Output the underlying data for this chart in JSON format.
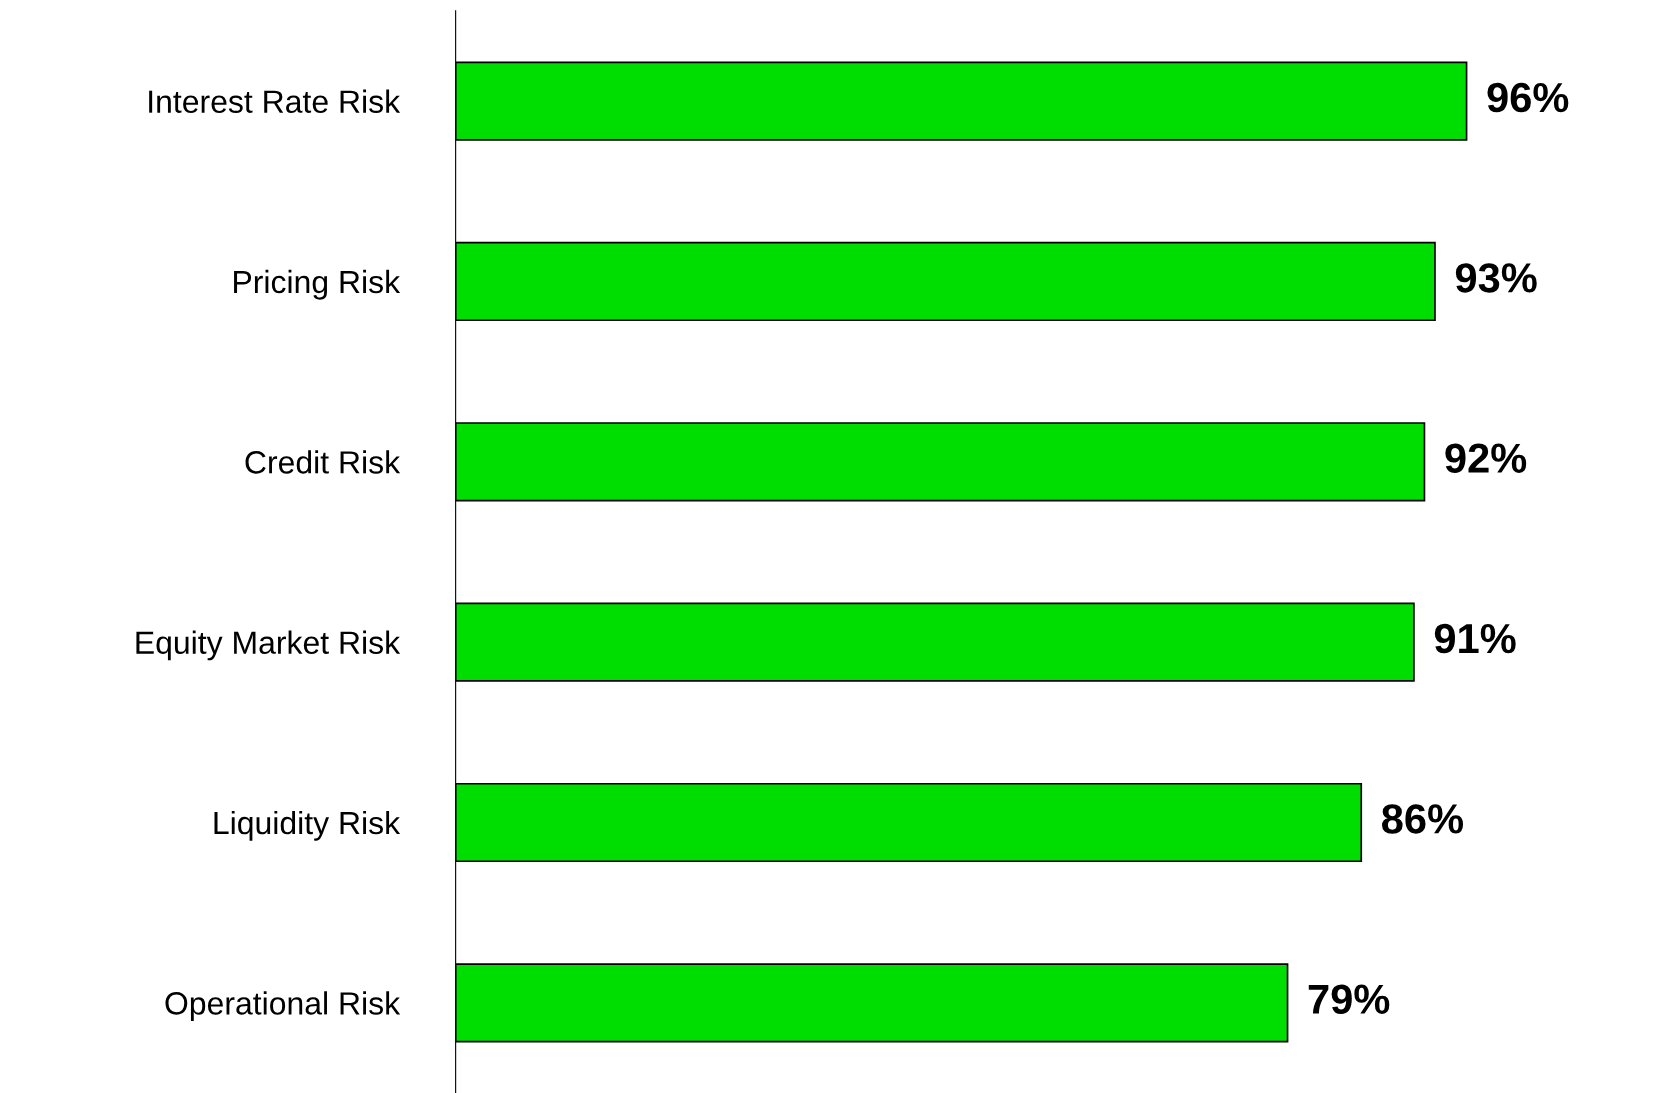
{
  "chart_data": {
    "type": "bar",
    "orientation": "horizontal",
    "categories": [
      "Interest Rate Risk",
      "Pricing Risk",
      "Credit Risk",
      "Equity Market Risk",
      "Liquidity Risk",
      "Operational Risk"
    ],
    "values": [
      96,
      93,
      92,
      91,
      86,
      79
    ],
    "value_labels": [
      "96%",
      "93%",
      "92%",
      "91%",
      "86%",
      "79%"
    ],
    "color": "#00dd00",
    "grid": false
  }
}
